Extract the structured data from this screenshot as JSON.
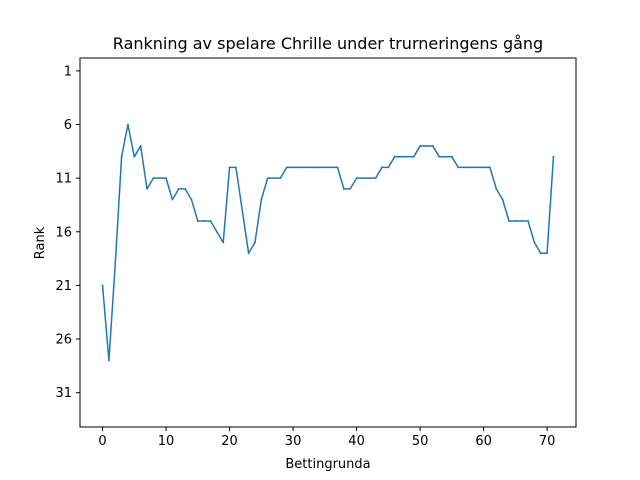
{
  "chart_data": {
    "type": "line",
    "title": "Rankning av spelare Chrille under trurneringens gång",
    "xlabel": "Bettingrunda",
    "ylabel": "Rank",
    "xlim": [
      -3.55,
      74.55
    ],
    "ylim": [
      34.2,
      -0.2
    ],
    "y_inverted": true,
    "x_ticks": [
      0,
      10,
      20,
      30,
      40,
      50,
      60,
      70
    ],
    "y_ticks": [
      1,
      6,
      11,
      16,
      21,
      26,
      31
    ],
    "grid": false,
    "line_color": "#1f77b4",
    "series": [
      {
        "x": [
          0,
          1,
          2,
          3,
          4,
          5,
          6,
          7,
          8,
          9,
          10,
          11,
          12,
          13,
          14,
          15,
          16,
          17,
          18,
          19,
          20,
          21,
          22,
          23,
          24,
          25,
          26,
          27,
          28,
          29,
          30,
          31,
          32,
          33,
          34,
          35,
          36,
          37,
          38,
          39,
          40,
          41,
          42,
          43,
          44,
          45,
          46,
          47,
          48,
          49,
          50,
          51,
          52,
          53,
          54,
          55,
          56,
          57,
          58,
          59,
          60,
          61,
          62,
          63,
          64,
          65,
          66,
          67,
          68,
          69,
          70,
          71
        ],
        "values": [
          21,
          28,
          19,
          9,
          6,
          9,
          8,
          12,
          11,
          11,
          11,
          13,
          12,
          12,
          13,
          15,
          15,
          15,
          16,
          17,
          10,
          10,
          14,
          18,
          17,
          13,
          11,
          11,
          11,
          10,
          10,
          10,
          10,
          10,
          10,
          10,
          10,
          10,
          12,
          12,
          11,
          11,
          11,
          11,
          10,
          10,
          9,
          9,
          9,
          9,
          8,
          8,
          8,
          9,
          9,
          9,
          10,
          10,
          10,
          10,
          10,
          10,
          12,
          13,
          15,
          15,
          15,
          15,
          17,
          18,
          18,
          9
        ]
      }
    ]
  }
}
